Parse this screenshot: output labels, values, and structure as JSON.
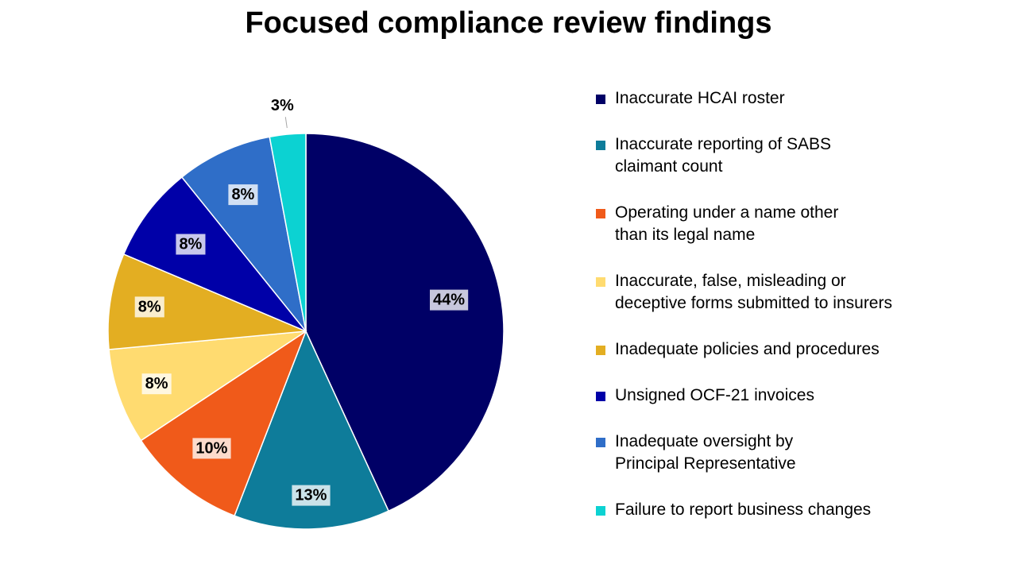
{
  "chart_data": {
    "type": "pie",
    "title": "Focused compliance review findings",
    "legend_position": "right",
    "slices": [
      {
        "label": [
          "Inaccurate HCAI roster"
        ],
        "value": 44,
        "display": "44%",
        "color": "#000066"
      },
      {
        "label": [
          "Inaccurate reporting of SABS",
          "claimant count"
        ],
        "value": 13,
        "display": "13%",
        "color": "#0E7C9A"
      },
      {
        "label": [
          "Operating under a name other",
          "than its legal name"
        ],
        "value": 10,
        "display": "10%",
        "color": "#F05A1A"
      },
      {
        "label": [
          "Inaccurate, false, misleading or",
          "deceptive forms submitted to insurers"
        ],
        "value": 8,
        "display": "8%",
        "color": "#FFDB70"
      },
      {
        "label": [
          "Inadequate policies and procedures"
        ],
        "value": 8,
        "display": "8%",
        "color": "#E3AE22"
      },
      {
        "label": [
          "Unsigned OCF-21 invoices"
        ],
        "value": 8,
        "display": "8%",
        "color": "#0000A8"
      },
      {
        "label": [
          "Inadequate oversight by",
          "Principal Representative"
        ],
        "value": 8,
        "display": "8%",
        "color": "#2F6EC8"
      },
      {
        "label": [
          "Failure to report business changes"
        ],
        "value": 3,
        "display": "3%",
        "color": "#0CD2D2"
      }
    ]
  }
}
